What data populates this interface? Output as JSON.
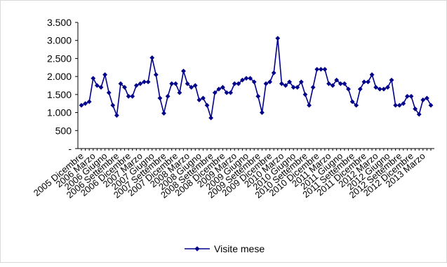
{
  "chart_data": {
    "type": "line",
    "title": "",
    "xlabel": "",
    "ylabel": "",
    "ylim": [
      0,
      3500
    ],
    "y_ticks": [
      "-",
      "500",
      "1.000",
      "1.500",
      "2.000",
      "2.500",
      "3.000",
      "3.500"
    ],
    "y_tick_values": [
      0,
      500,
      1000,
      1500,
      2000,
      2500,
      3000,
      3500
    ],
    "x_tick_labels": [
      "2005 Dicembre",
      "2006 Marzo",
      "2006 Giugno",
      "2006 Settembre",
      "2006 Dicembre",
      "2007 Marzo",
      "2007 Giugno",
      "2007 Settembre",
      "2007 Dicembre",
      "2008 Marzo",
      "2008 Giugno",
      "2008 Settembre",
      "2008 Dicembre",
      "2009 Marzo",
      "2009 Giugno",
      "2009 Settembre",
      "2009 Dicembre",
      "2010 Marzo",
      "2010 Giugno",
      "2010 Settembre",
      "2010 Dicembre",
      "2011 Marzo",
      "2011 Giugno",
      "2011 Settembre",
      "2011 Dicembre",
      "2012 Marzo",
      "2012 Giugno",
      "2012 Settembre",
      "2012 Dicembre",
      "2013 Marzo"
    ],
    "grid": false,
    "legend_position": "bottom",
    "series": [
      {
        "name": "Visite mese",
        "color": "#00008B",
        "values": [
          1200,
          1250,
          1300,
          1950,
          1750,
          1700,
          2050,
          1550,
          1200,
          920,
          1800,
          1700,
          1450,
          1450,
          1750,
          1800,
          1850,
          1850,
          2520,
          2050,
          1400,
          980,
          1450,
          1800,
          1800,
          1550,
          2150,
          1800,
          1700,
          1750,
          1350,
          1400,
          1200,
          850,
          1550,
          1650,
          1700,
          1550,
          1550,
          1800,
          1800,
          1900,
          1950,
          1950,
          1850,
          1450,
          1000,
          1800,
          1850,
          2100,
          3060,
          1800,
          1750,
          1850,
          1700,
          1700,
          1850,
          1500,
          1200,
          1700,
          2200,
          2200,
          2200,
          1800,
          1750,
          1900,
          1800,
          1800,
          1650,
          1300,
          1200,
          1650,
          1850,
          1850,
          2050,
          1700,
          1650,
          1650,
          1700,
          1900,
          1200,
          1200,
          1250,
          1450,
          1450,
          1100,
          950,
          1350,
          1400,
          1200
        ]
      }
    ]
  }
}
